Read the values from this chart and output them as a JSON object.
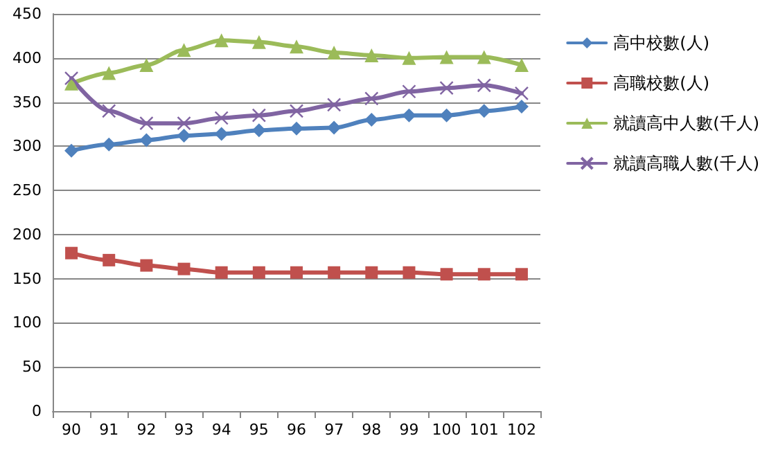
{
  "chart_data": {
    "type": "line",
    "categories": [
      "90",
      "91",
      "92",
      "93",
      "94",
      "95",
      "96",
      "97",
      "98",
      "99",
      "100",
      "101",
      "102"
    ],
    "series": [
      {
        "name": "高中校數(人)",
        "color": "#4f81bd",
        "marker": "diamond",
        "values": [
          295,
          302,
          307,
          312,
          314,
          318,
          320,
          321,
          330,
          335,
          335,
          340,
          345
        ]
      },
      {
        "name": "高職校數(人)",
        "color": "#c0504d",
        "marker": "square",
        "values": [
          179,
          171,
          165,
          161,
          157,
          157,
          157,
          157,
          157,
          157,
          155,
          155,
          155
        ]
      },
      {
        "name": "就讀高中人數(千人)",
        "color": "#9bbb59",
        "marker": "triangle",
        "values": [
          371,
          383,
          392,
          409,
          420,
          418,
          413,
          406,
          403,
          400,
          401,
          401,
          392
        ]
      },
      {
        "name": "就讀高職人數(千人)",
        "color": "#8064a2",
        "marker": "cross",
        "values": [
          377,
          340,
          326,
          326,
          332,
          335,
          340,
          347,
          354,
          362,
          366,
          369,
          360
        ]
      }
    ],
    "ylim": [
      0,
      450
    ],
    "yticks": [
      0,
      50,
      100,
      150,
      200,
      250,
      300,
      350,
      400,
      450
    ],
    "grid": "y",
    "legend": "right"
  }
}
